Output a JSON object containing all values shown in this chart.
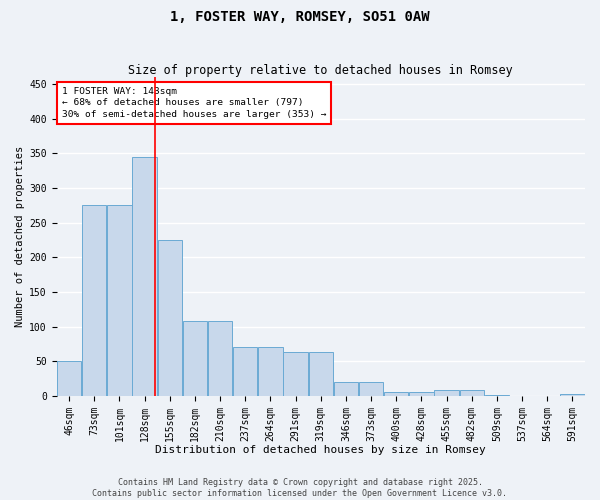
{
  "title1": "1, FOSTER WAY, ROMSEY, SO51 0AW",
  "title2": "Size of property relative to detached houses in Romsey",
  "xlabel": "Distribution of detached houses by size in Romsey",
  "ylabel": "Number of detached properties",
  "categories": [
    "46sqm",
    "73sqm",
    "101sqm",
    "128sqm",
    "155sqm",
    "182sqm",
    "210sqm",
    "237sqm",
    "264sqm",
    "291sqm",
    "319sqm",
    "346sqm",
    "373sqm",
    "400sqm",
    "428sqm",
    "455sqm",
    "482sqm",
    "509sqm",
    "537sqm",
    "564sqm",
    "591sqm"
  ],
  "values": [
    51,
    275,
    275,
    345,
    225,
    108,
    108,
    70,
    70,
    63,
    63,
    20,
    20,
    6,
    6,
    8,
    8,
    1,
    0,
    0,
    3
  ],
  "bar_color": "#c8d8eb",
  "bar_edge_color": "#6aaad4",
  "annotation_text": "1 FOSTER WAY: 143sqm\n← 68% of detached houses are smaller (797)\n30% of semi-detached houses are larger (353) →",
  "annotation_box_color": "white",
  "annotation_box_edge_color": "red",
  "vline_color": "red",
  "vline_x": 3.42,
  "ylim": [
    0,
    460
  ],
  "yticks": [
    0,
    50,
    100,
    150,
    200,
    250,
    300,
    350,
    400,
    450
  ],
  "footer": "Contains HM Land Registry data © Crown copyright and database right 2025.\nContains public sector information licensed under the Open Government Licence v3.0.",
  "bg_color": "#eef2f7",
  "grid_color": "#ffffff",
  "title1_fontsize": 10,
  "title2_fontsize": 8.5,
  "xlabel_fontsize": 8,
  "ylabel_fontsize": 7.5,
  "tick_fontsize": 7,
  "ann_fontsize": 6.8,
  "footer_fontsize": 6
}
